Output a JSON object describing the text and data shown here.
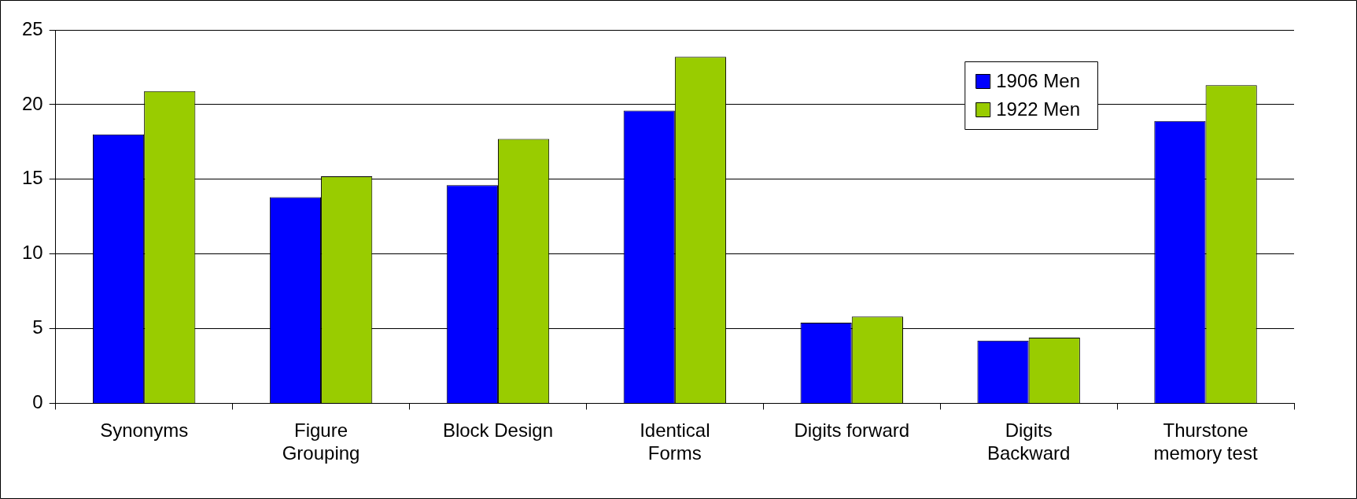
{
  "chart_data": {
    "type": "bar",
    "categories": [
      "Synonyms",
      "Figure Grouping",
      "Block Design",
      "Identical Forms",
      "Digits forward",
      "Digits Backward",
      "Thurstone memory test"
    ],
    "series": [
      {
        "name": "1906 Men",
        "color": "#0000ff",
        "values": [
          18.0,
          13.8,
          14.6,
          19.6,
          5.4,
          4.2,
          18.9
        ]
      },
      {
        "name": "1922 Men",
        "color": "#99cc00",
        "values": [
          20.9,
          15.2,
          17.7,
          23.2,
          5.8,
          4.4,
          21.3
        ]
      }
    ],
    "ylim": [
      0,
      25
    ],
    "yticks": [
      0,
      5,
      10,
      15,
      20,
      25
    ],
    "grid": "y",
    "legend": "top right"
  }
}
